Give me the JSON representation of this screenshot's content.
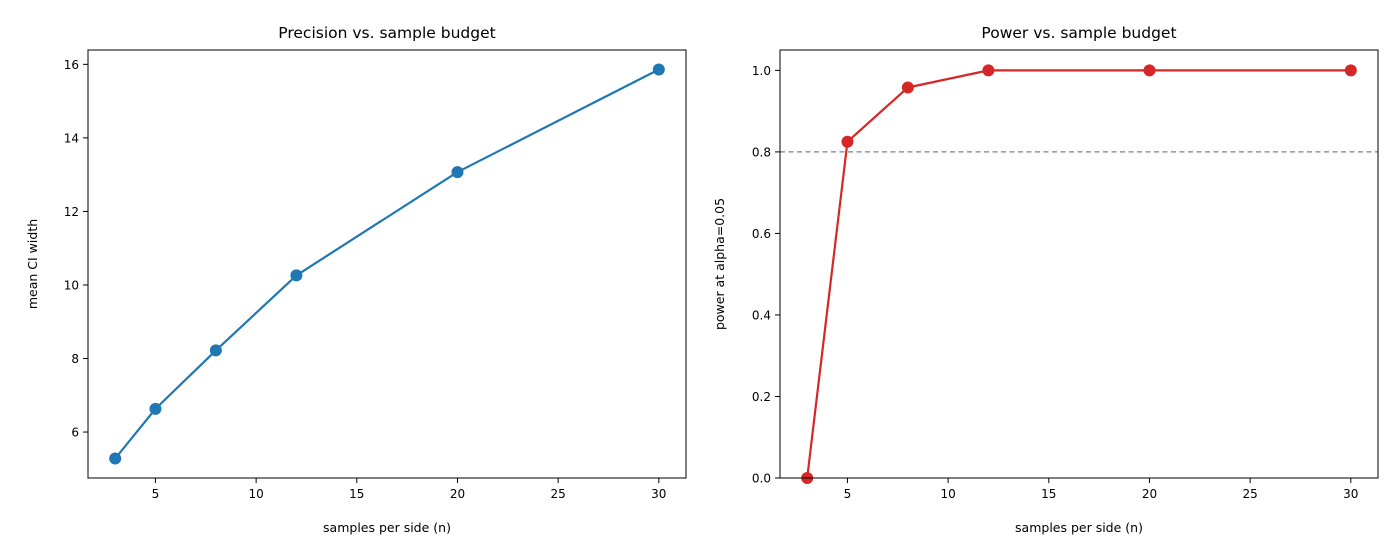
{
  "chart_data": [
    {
      "type": "line",
      "title": "Precision vs. sample budget",
      "xlabel": "samples per side (n)",
      "ylabel": "mean CI width",
      "x": [
        3,
        5,
        8,
        12,
        20,
        30
      ],
      "series": [
        {
          "values": [
            5.28,
            6.63,
            8.22,
            10.26,
            13.07,
            15.86
          ],
          "color": "#1f77b4"
        }
      ],
      "xlim": [
        1.65,
        31.35
      ],
      "ylim": [
        4.75,
        16.39
      ],
      "xticks": [
        5,
        10,
        15,
        20,
        25,
        30
      ],
      "yticks": [
        6,
        8,
        10,
        12,
        14,
        16
      ],
      "ytick_decimals": 0,
      "grid": false,
      "legend": "none",
      "markers": "circle"
    },
    {
      "type": "line",
      "title": "Power vs. sample budget",
      "xlabel": "samples per side (n)",
      "ylabel": "power at alpha=0.05",
      "x": [
        3,
        5,
        8,
        12,
        20,
        30
      ],
      "series": [
        {
          "values": [
            0.0,
            0.825,
            0.958,
            1.0,
            1.0,
            1.0
          ],
          "color": "#d62728"
        }
      ],
      "reference_line": {
        "y": 0.8,
        "style": "dashed",
        "color": "#808080"
      },
      "xlim": [
        1.65,
        31.35
      ],
      "ylim": [
        0.0,
        1.05
      ],
      "xticks": [
        5,
        10,
        15,
        20,
        25,
        30
      ],
      "yticks": [
        0.0,
        0.2,
        0.4,
        0.6,
        0.8,
        1.0
      ],
      "ytick_decimals": 1,
      "grid": false,
      "legend": "none",
      "markers": "circle"
    }
  ]
}
